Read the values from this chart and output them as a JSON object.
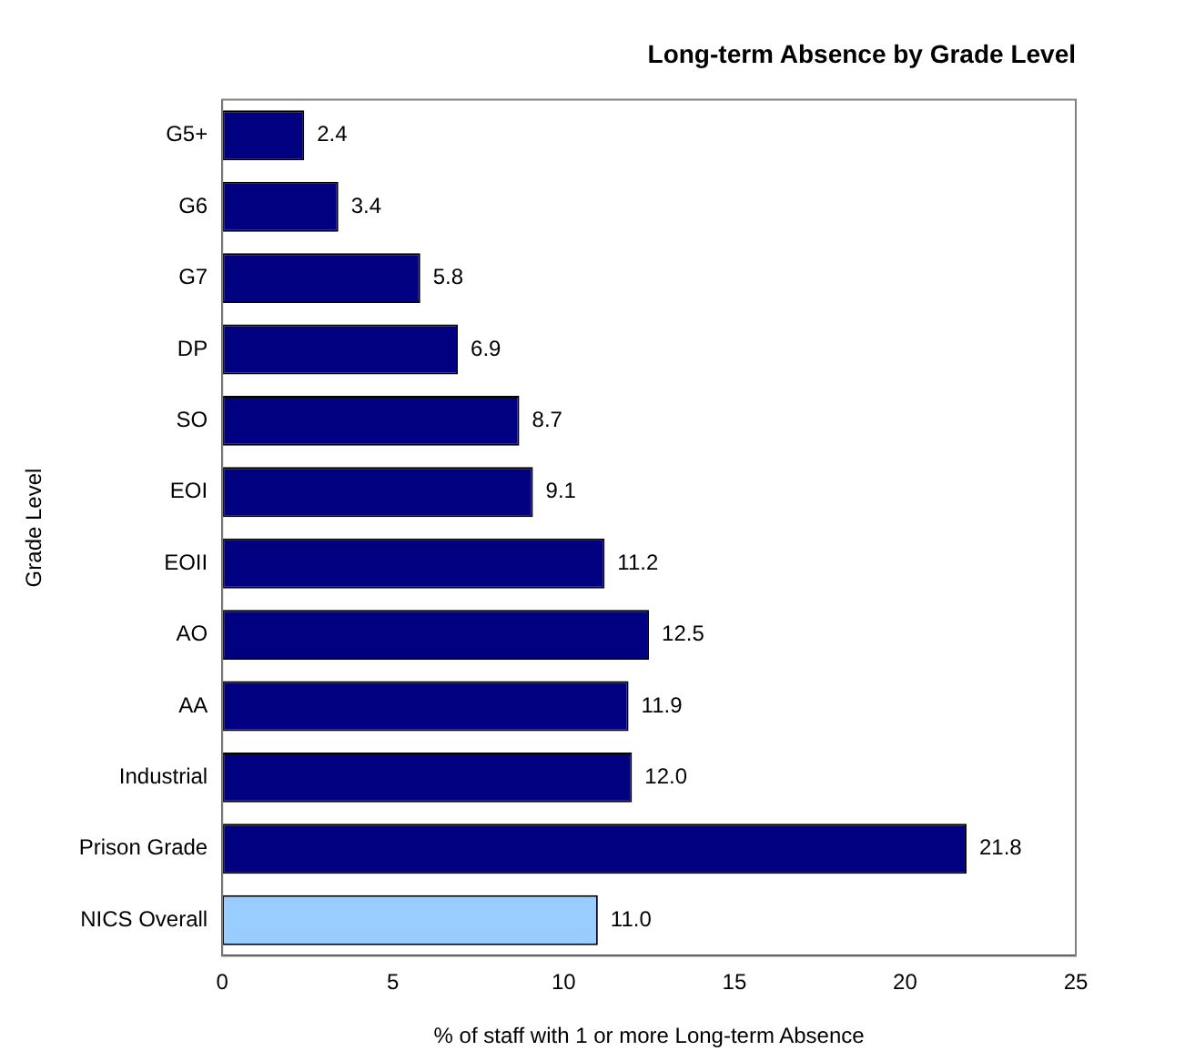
{
  "chart_data": {
    "type": "bar",
    "orientation": "horizontal",
    "title": "Long-term Absence by Grade Level",
    "xlabel": "% of staff with 1 or more Long-term Absence",
    "ylabel": "Grade Level",
    "categories": [
      "G5+",
      "G6",
      "G7",
      "DP",
      "SO",
      "EOI",
      "EOII",
      "AO",
      "AA",
      "Industrial",
      "Prison Grade",
      "NICS Overall"
    ],
    "values": [
      2.4,
      3.4,
      5.8,
      6.9,
      8.7,
      9.1,
      11.2,
      12.5,
      11.9,
      12.0,
      21.8,
      11.0
    ],
    "value_labels": [
      "2.4",
      "3.4",
      "5.8",
      "6.9",
      "8.7",
      "9.1",
      "11.2",
      "12.5",
      "11.9",
      "12.0",
      "21.8",
      "11.0"
    ],
    "colors": [
      "#000080",
      "#000080",
      "#000080",
      "#000080",
      "#000080",
      "#000080",
      "#000080",
      "#000080",
      "#000080",
      "#000080",
      "#000080",
      "#99ccff"
    ],
    "xlim": [
      0,
      25
    ],
    "xticks": [
      0,
      5,
      10,
      15,
      20,
      25
    ],
    "grid": false,
    "legend": false
  }
}
